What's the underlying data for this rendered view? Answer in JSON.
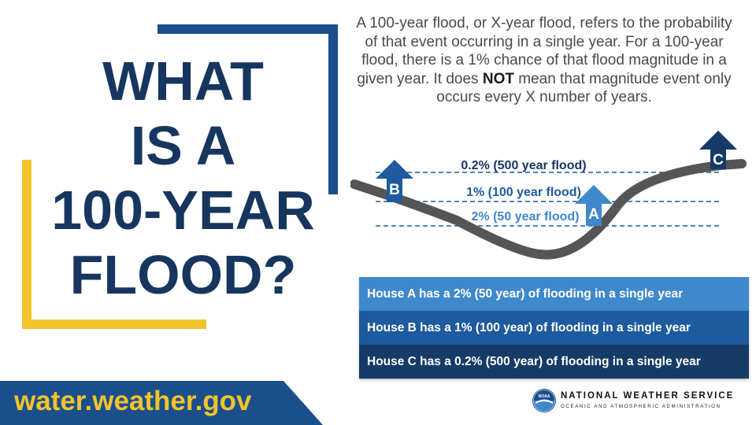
{
  "title": {
    "line1": "WHAT",
    "line2": "IS A",
    "line3": "100-YEAR",
    "line4": "FLOOD?"
  },
  "intro": {
    "part1": "A 100-year flood, or X-year flood, refers to the probability of that event occurring in a single year. For a 100-year flood, there is a 1% chance of that flood magnitude in a given year. It does ",
    "emphasis": "NOT",
    "part2": " mean that magnitude event only occurs every X number of years."
  },
  "diagram": {
    "levels": [
      {
        "label": "0.2% (500 year flood)"
      },
      {
        "label": "1% (100 year flood)"
      },
      {
        "label": "2% (50 year flood)"
      }
    ],
    "houses": [
      {
        "letter": "B",
        "color": "#1d5a9e"
      },
      {
        "letter": "A",
        "color": "#3e88cc"
      },
      {
        "letter": "C",
        "color": "#153b66"
      }
    ],
    "colors": {
      "terrain": "#555555",
      "dash": "#1d5a9e"
    }
  },
  "captions": [
    "House A has a 2% (50 year) of flooding in a single year",
    "House B has a 1% (100 year) of flooding in a single year",
    "House C has a 0.2% (500 year) of flooding in a single year"
  ],
  "footer": {
    "url": "water.weather.gov"
  },
  "agency": {
    "name": "NATIONAL WEATHER SERVICE",
    "subtitle": "OCEANIC AND ATMOSPHERIC ADMINISTRATION",
    "logo_text": "NOAA"
  },
  "colors": {
    "navy": "#17365f",
    "blue": "#1a4f8b",
    "gold": "#f2c42c"
  }
}
